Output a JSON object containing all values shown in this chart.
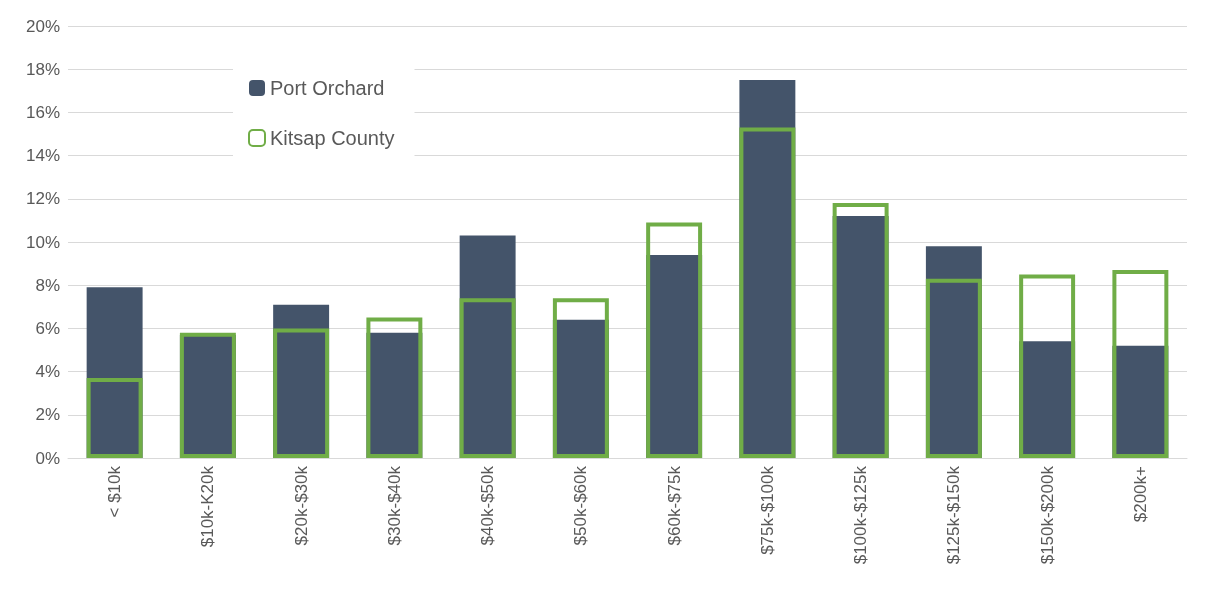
{
  "chart_data": {
    "type": "bar",
    "categories": [
      "< $10k",
      "$10k-K20k",
      "$20k-$30k",
      "$30k-$40k",
      "$40k-$50k",
      "$50k-$60k",
      "$60k-$75k",
      "$75k-$100k",
      "$100k-$125k",
      "$125k-$150k",
      "$150k-$200k",
      "$200k+"
    ],
    "series": [
      {
        "name": "Port Orchard",
        "color": "#44546a",
        "values": [
          7.9,
          5.7,
          7.1,
          5.8,
          10.3,
          6.4,
          9.4,
          17.5,
          11.2,
          9.8,
          5.4,
          5.2
        ]
      },
      {
        "name": "Kitsap County",
        "color": "#70ad47",
        "values": [
          3.7,
          5.8,
          6.0,
          6.5,
          7.4,
          7.4,
          10.9,
          15.3,
          11.8,
          8.3,
          8.5,
          8.7
        ]
      }
    ],
    "ylim": [
      0,
      20
    ],
    "yticks": [
      {
        "value": 0,
        "label": "0%"
      },
      {
        "value": 2,
        "label": "2%"
      },
      {
        "value": 4,
        "label": "4%"
      },
      {
        "value": 6,
        "label": "6%"
      },
      {
        "value": 8,
        "label": "8%"
      },
      {
        "value": 10,
        "label": "10%"
      },
      {
        "value": 12,
        "label": "12%"
      },
      {
        "value": 14,
        "label": "14%"
      },
      {
        "value": 16,
        "label": "16%"
      },
      {
        "value": 18,
        "label": "18%"
      },
      {
        "value": 20,
        "label": "20%"
      }
    ],
    "grid": "y",
    "legend": "top left"
  }
}
